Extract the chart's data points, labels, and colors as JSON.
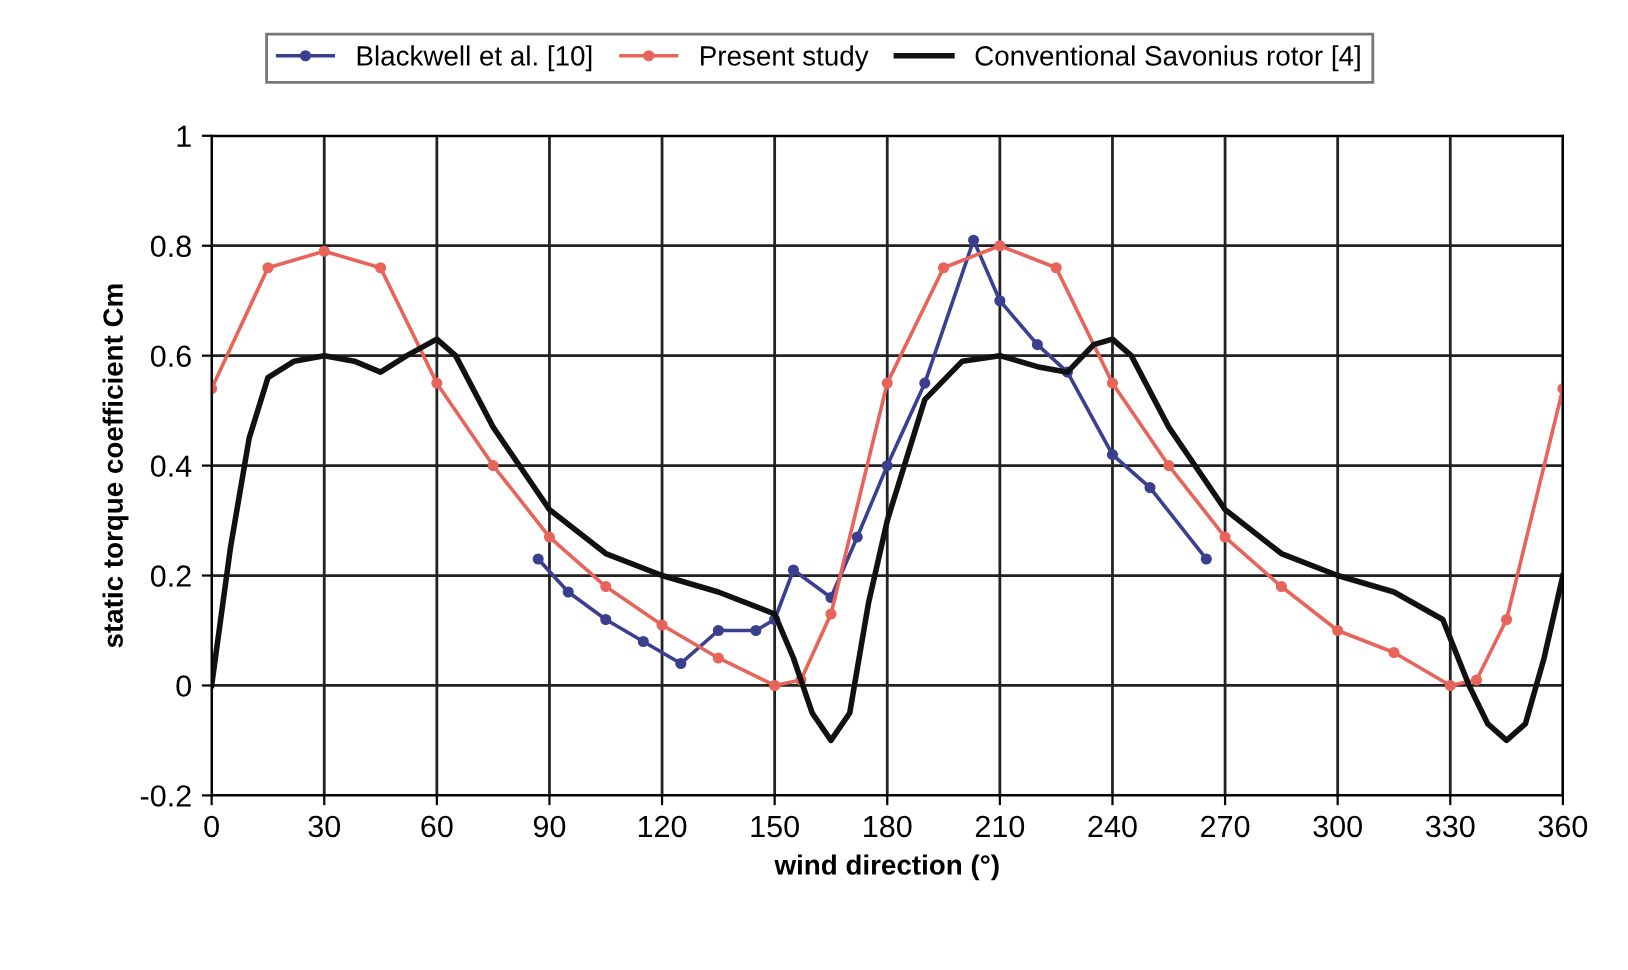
{
  "chart_data": {
    "type": "line",
    "xlabel": "wind direction (°)",
    "ylabel": "static torque coefficient Cm",
    "xlim": [
      0,
      360
    ],
    "xticks": [
      0,
      30,
      60,
      90,
      120,
      150,
      180,
      210,
      240,
      270,
      300,
      330,
      360
    ],
    "ylim": [
      -0.2,
      1
    ],
    "yticks": [
      -0.2,
      0,
      0.2,
      0.4,
      0.6,
      0.8,
      1
    ],
    "grid": true,
    "legend": "top",
    "line_style": "solid",
    "series": [
      {
        "name": "Blackwell et al. [10]",
        "color": "#3a3f8f",
        "marker": "circle",
        "x": [
          87,
          95,
          105,
          115,
          125,
          135,
          145,
          150,
          155,
          165,
          172,
          180,
          190,
          203,
          210,
          220,
          228,
          240,
          250,
          265
        ],
        "values": [
          0.23,
          0.17,
          0.12,
          0.08,
          0.04,
          0.1,
          0.1,
          0.12,
          0.21,
          0.16,
          0.27,
          0.4,
          0.55,
          0.81,
          0.7,
          0.62,
          0.57,
          0.42,
          0.36,
          0.23
        ]
      },
      {
        "name": "Present study",
        "color": "#e8645a",
        "marker": "circle",
        "x": [
          0,
          15,
          30,
          45,
          60,
          75,
          90,
          105,
          120,
          135,
          150,
          157,
          165,
          180,
          195,
          210,
          225,
          240,
          255,
          270,
          285,
          300,
          315,
          330,
          337,
          345,
          360
        ],
        "values": [
          0.54,
          0.76,
          0.79,
          0.76,
          0.55,
          0.4,
          0.27,
          0.18,
          0.11,
          0.05,
          0.0,
          0.01,
          0.13,
          0.55,
          0.76,
          0.8,
          0.76,
          0.55,
          0.4,
          0.27,
          0.18,
          0.1,
          0.06,
          0.0,
          0.01,
          0.12,
          0.54
        ]
      },
      {
        "name": "Conventional Savonius rotor [4]",
        "color": "#111111",
        "marker": "none",
        "x": [
          0,
          5,
          10,
          15,
          22,
          30,
          38,
          45,
          52,
          60,
          65,
          75,
          90,
          105,
          120,
          135,
          150,
          155,
          160,
          165,
          170,
          175,
          180,
          190,
          200,
          210,
          220,
          228,
          235,
          240,
          245,
          255,
          270,
          285,
          300,
          315,
          328,
          335,
          340,
          345,
          350,
          355,
          360
        ],
        "values": [
          0.0,
          0.25,
          0.45,
          0.56,
          0.59,
          0.6,
          0.59,
          0.57,
          0.6,
          0.63,
          0.6,
          0.47,
          0.32,
          0.24,
          0.2,
          0.17,
          0.13,
          0.05,
          -0.05,
          -0.1,
          -0.05,
          0.15,
          0.3,
          0.52,
          0.59,
          0.6,
          0.58,
          0.57,
          0.62,
          0.63,
          0.6,
          0.47,
          0.32,
          0.24,
          0.2,
          0.17,
          0.12,
          0.0,
          -0.07,
          -0.1,
          -0.07,
          0.05,
          0.2
        ]
      }
    ]
  }
}
